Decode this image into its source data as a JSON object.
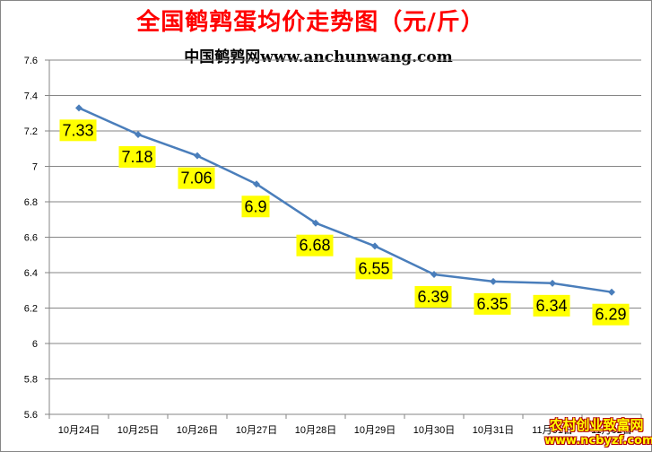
{
  "chart_data": {
    "type": "line",
    "title": "全国鹌鹑蛋均价走势图（元/斤）",
    "subtitle": "中国鹌鹑网www.anchunwang.com",
    "categories": [
      "10月24日",
      "10月25日",
      "10月26日",
      "10月27日",
      "10月28日",
      "10月29日",
      "10月30日",
      "10月31日",
      "11月01日",
      "11月02日"
    ],
    "series": [
      {
        "values": [
          7.33,
          7.18,
          7.06,
          6.9,
          6.68,
          6.55,
          6.39,
          6.35,
          6.34,
          6.29
        ]
      }
    ],
    "data_labels": [
      "7.33",
      "7.18",
      "7.06",
      "6.9",
      "6.68",
      "6.55",
      "6.39",
      "6.35",
      "6.34",
      "6.29"
    ],
    "y_ticks": [
      "5.6",
      "5.8",
      "6",
      "6.2",
      "6.4",
      "6.6",
      "6.8",
      "7",
      "7.2",
      "7.4",
      "7.6"
    ],
    "ylim": [
      5.6,
      7.6
    ],
    "grid": true,
    "line_color": "#4a7ebb",
    "label_bg_color": "#ffff00"
  },
  "watermark": {
    "line1": "农村创业致富网",
    "line2": "www.ncbyzf.com"
  }
}
